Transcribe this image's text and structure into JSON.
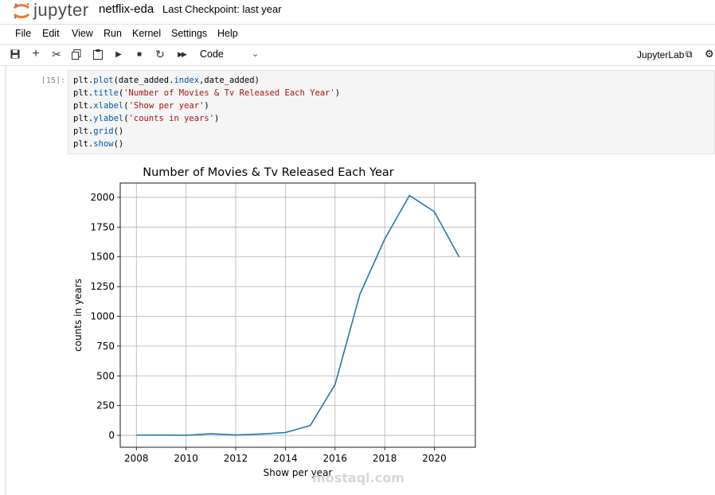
{
  "app": {
    "logo_text": "jupyter",
    "notebook_name": "netflix-eda",
    "checkpoint": "Last Checkpoint: last year"
  },
  "menu": [
    "File",
    "Edit",
    "View",
    "Run",
    "Kernel",
    "Settings",
    "Help"
  ],
  "toolbar": {
    "cell_type": "Code",
    "jupyterlab_label": "JupyterLab"
  },
  "cell": {
    "prompt": "[15]:",
    "lines": [
      {
        "obj": "plt.",
        "fn": "plot",
        "args": "(date_added.",
        "fn2": "index",
        "args2": ",date_added)"
      },
      {
        "obj": "plt.",
        "fn": "title",
        "args": "(",
        "str": "'Number of Movies & Tv Released Each Year'",
        "end": ")"
      },
      {
        "obj": "plt.",
        "fn": "xlabel",
        "args": "(",
        "str": "'Show per year'",
        "end": ")"
      },
      {
        "obj": "plt.",
        "fn": "ylabel",
        "args": "(",
        "str": "'counts in years'",
        "end": ")"
      },
      {
        "obj": "plt.",
        "fn": "grid",
        "args": "()"
      },
      {
        "obj": "plt.",
        "fn": "show",
        "args": "()"
      }
    ]
  },
  "chart_data": {
    "type": "line",
    "title": "Number of Movies & Tv Released Each Year",
    "xlabel": "Show per year",
    "ylabel": "counts in years",
    "x": [
      2008,
      2009,
      2010,
      2011,
      2012,
      2013,
      2014,
      2015,
      2016,
      2017,
      2018,
      2019,
      2020,
      2021
    ],
    "y": [
      2,
      2,
      1,
      13,
      3,
      11,
      24,
      82,
      426,
      1185,
      1649,
      2016,
      1879,
      1498
    ],
    "xticks": [
      2008,
      2010,
      2012,
      2014,
      2016,
      2018,
      2020
    ],
    "yticks": [
      0,
      250,
      500,
      750,
      1000,
      1250,
      1500,
      1750,
      2000
    ],
    "xlim": [
      2007.35,
      2021.65
    ],
    "ylim": [
      -100,
      2120
    ],
    "grid": true,
    "line_color": "#1f77b4"
  },
  "watermark": {
    "text": "mostaql.com"
  }
}
